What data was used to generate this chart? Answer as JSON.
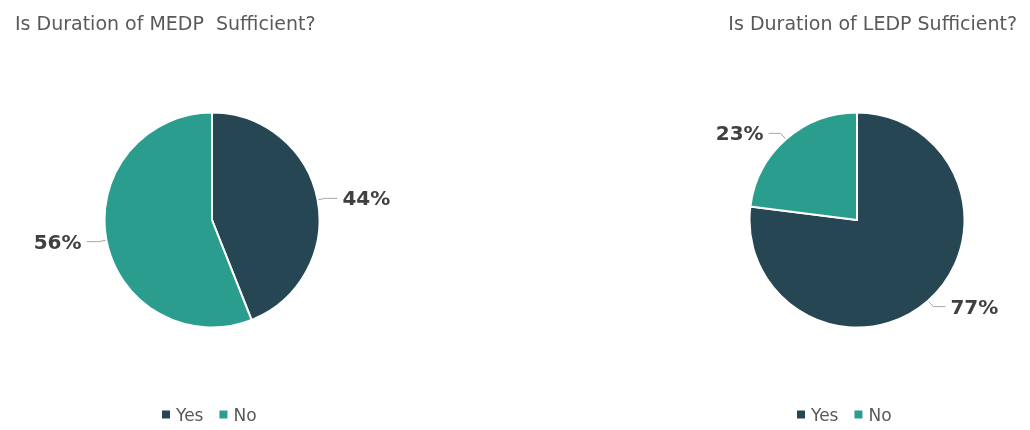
{
  "chart_data": [
    {
      "type": "pie",
      "title": "Is Duration of MEDP  Sufficient?",
      "categories": [
        "Yes",
        "No"
      ],
      "values": [
        44,
        56
      ],
      "colors": [
        "#264653",
        "#2a9d8f"
      ],
      "value_labels": [
        "44%",
        "56%"
      ],
      "legend": "bottom"
    },
    {
      "type": "pie",
      "title": "Is Duration of LEDP Sufficient?",
      "categories": [
        "Yes",
        "No"
      ],
      "values": [
        77,
        23
      ],
      "colors": [
        "#264653",
        "#2a9d8f"
      ],
      "value_labels": [
        "77%",
        "23%"
      ],
      "legend": "bottom"
    }
  ]
}
